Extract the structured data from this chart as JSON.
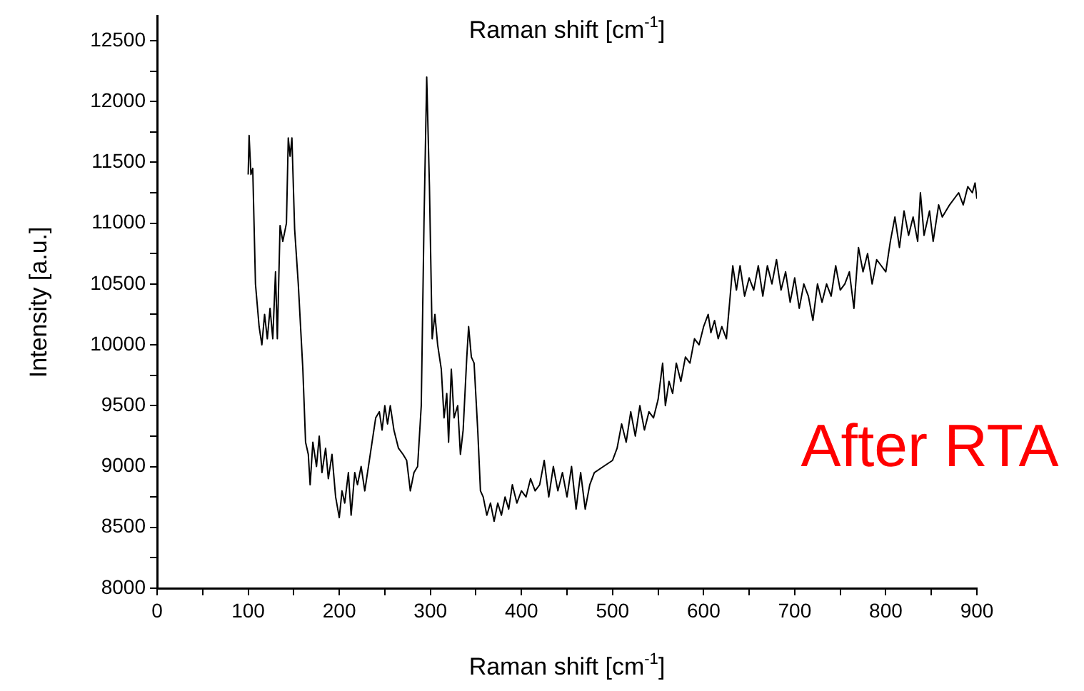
{
  "chart_data": {
    "type": "line",
    "title": "Raman shift [cm$^{-1}$]",
    "xlabel": "Raman shift [cm$^{-1}$]",
    "ylabel": "Intensity [a.u.]",
    "annotations": [
      "After RTA"
    ],
    "xlim": [
      0,
      900
    ],
    "xticks": [
      0,
      {
        "value": 50,
        "label": null
      },
      100,
      {
        "value": 150,
        "label": null
      },
      200,
      {
        "value": 250,
        "label": null
      },
      300,
      {
        "value": 350,
        "label": null
      },
      400,
      {
        "value": 450,
        "label": null
      },
      500,
      {
        "value": 550,
        "label": null
      },
      600,
      {
        "value": 650,
        "label": null
      },
      700,
      {
        "value": 750,
        "label": null
      },
      800,
      {
        "value": 850,
        "label": null
      },
      900
    ],
    "ylim": [
      8000,
      12700
    ],
    "yticks": [
      8000,
      {
        "value": 8250,
        "label": null
      },
      8500,
      {
        "value": 8750,
        "label": null
      },
      9000,
      {
        "value": 9250,
        "label": null
      },
      9500,
      {
        "value": 9750,
        "label": null
      },
      10000,
      {
        "value": 10250,
        "label": null
      },
      10500,
      {
        "value": 10750,
        "label": null
      },
      11000,
      {
        "value": 11250,
        "label": null
      },
      11500,
      {
        "value": 11750,
        "label": null
      },
      12000,
      {
        "value": 12250,
        "label": null
      },
      12500
    ],
    "grid": false,
    "legend": false,
    "marker": "none",
    "line_style": "solid",
    "x": [
      100,
      101,
      103,
      105,
      108,
      112,
      115,
      118,
      121,
      124,
      127,
      130,
      132,
      135,
      138,
      142,
      144,
      146,
      148,
      151,
      155,
      160,
      163,
      166,
      168,
      171,
      175,
      178,
      181,
      185,
      188,
      192,
      196,
      200,
      203,
      206,
      210,
      213,
      217,
      220,
      224,
      228,
      232,
      236,
      240,
      244,
      247,
      250,
      253,
      256,
      260,
      265,
      270,
      274,
      278,
      282,
      286,
      290,
      293,
      296,
      299,
      302,
      305,
      308,
      312,
      315,
      318,
      320,
      323,
      326,
      330,
      333,
      336,
      340,
      342,
      345,
      348,
      352,
      355,
      358,
      362,
      366,
      370,
      374,
      378,
      382,
      386,
      390,
      395,
      400,
      405,
      410,
      415,
      420,
      425,
      430,
      435,
      440,
      445,
      450,
      455,
      460,
      465,
      470,
      475,
      480,
      490,
      500,
      505,
      510,
      515,
      520,
      525,
      530,
      535,
      540,
      545,
      550,
      555,
      558,
      562,
      566,
      570,
      575,
      580,
      585,
      590,
      595,
      600,
      605,
      608,
      612,
      616,
      620,
      625,
      628,
      632,
      636,
      640,
      645,
      650,
      655,
      660,
      665,
      670,
      675,
      680,
      685,
      690,
      695,
      700,
      705,
      710,
      715,
      720,
      725,
      730,
      735,
      740,
      745,
      750,
      755,
      760,
      765,
      770,
      775,
      780,
      785,
      790,
      795,
      800,
      805,
      810,
      815,
      820,
      825,
      830,
      835,
      838,
      842,
      848,
      852,
      858,
      862,
      866,
      870,
      875,
      880,
      885,
      890,
      895,
      898,
      900
    ],
    "series": [
      {
        "color": "#000000",
        "values": [
          11400,
          11720,
          11400,
          11450,
          10500,
          10150,
          10000,
          10250,
          10050,
          10300,
          10050,
          10600,
          10050,
          10980,
          10850,
          11000,
          11700,
          11550,
          11700,
          10950,
          10500,
          9800,
          9200,
          9100,
          8850,
          9200,
          9000,
          9250,
          8950,
          9150,
          8900,
          9100,
          8750,
          8580,
          8800,
          8700,
          8950,
          8600,
          8950,
          8850,
          9000,
          8800,
          9000,
          9200,
          9400,
          9450,
          9300,
          9500,
          9350,
          9500,
          9300,
          9150,
          9100,
          9050,
          8800,
          8950,
          9000,
          9500,
          11000,
          12200,
          11300,
          10050,
          10250,
          10000,
          9800,
          9400,
          9600,
          9200,
          9800,
          9400,
          9500,
          9100,
          9300,
          9900,
          10150,
          9900,
          9850,
          9300,
          8800,
          8750,
          8600,
          8700,
          8550,
          8700,
          8600,
          8750,
          8650,
          8850,
          8700,
          8800,
          8750,
          8900,
          8800,
          8850,
          9050,
          8750,
          9000,
          8800,
          8950,
          8750,
          9000,
          8650,
          8950,
          8650,
          8850,
          8950,
          9000,
          9050,
          9150,
          9350,
          9200,
          9450,
          9250,
          9500,
          9300,
          9450,
          9400,
          9550,
          9850,
          9500,
          9700,
          9600,
          9850,
          9700,
          9900,
          9850,
          10050,
          10000,
          10150,
          10250,
          10100,
          10200,
          10050,
          10150,
          10050,
          10300,
          10650,
          10450,
          10650,
          10400,
          10550,
          10450,
          10650,
          10400,
          10650,
          10500,
          10700,
          10450,
          10600,
          10350,
          10550,
          10300,
          10500,
          10400,
          10200,
          10500,
          10350,
          10500,
          10400,
          10650,
          10450,
          10500,
          10600,
          10300,
          10800,
          10600,
          10750,
          10500,
          10700,
          10650,
          10600,
          10850,
          11050,
          10800,
          11100,
          10900,
          11050,
          10850,
          11250,
          10900,
          11100,
          10850,
          11150,
          11050,
          11100,
          11150,
          11200,
          11250,
          11150,
          11300,
          11250,
          11330,
          11200
        ]
      }
    ]
  }
}
